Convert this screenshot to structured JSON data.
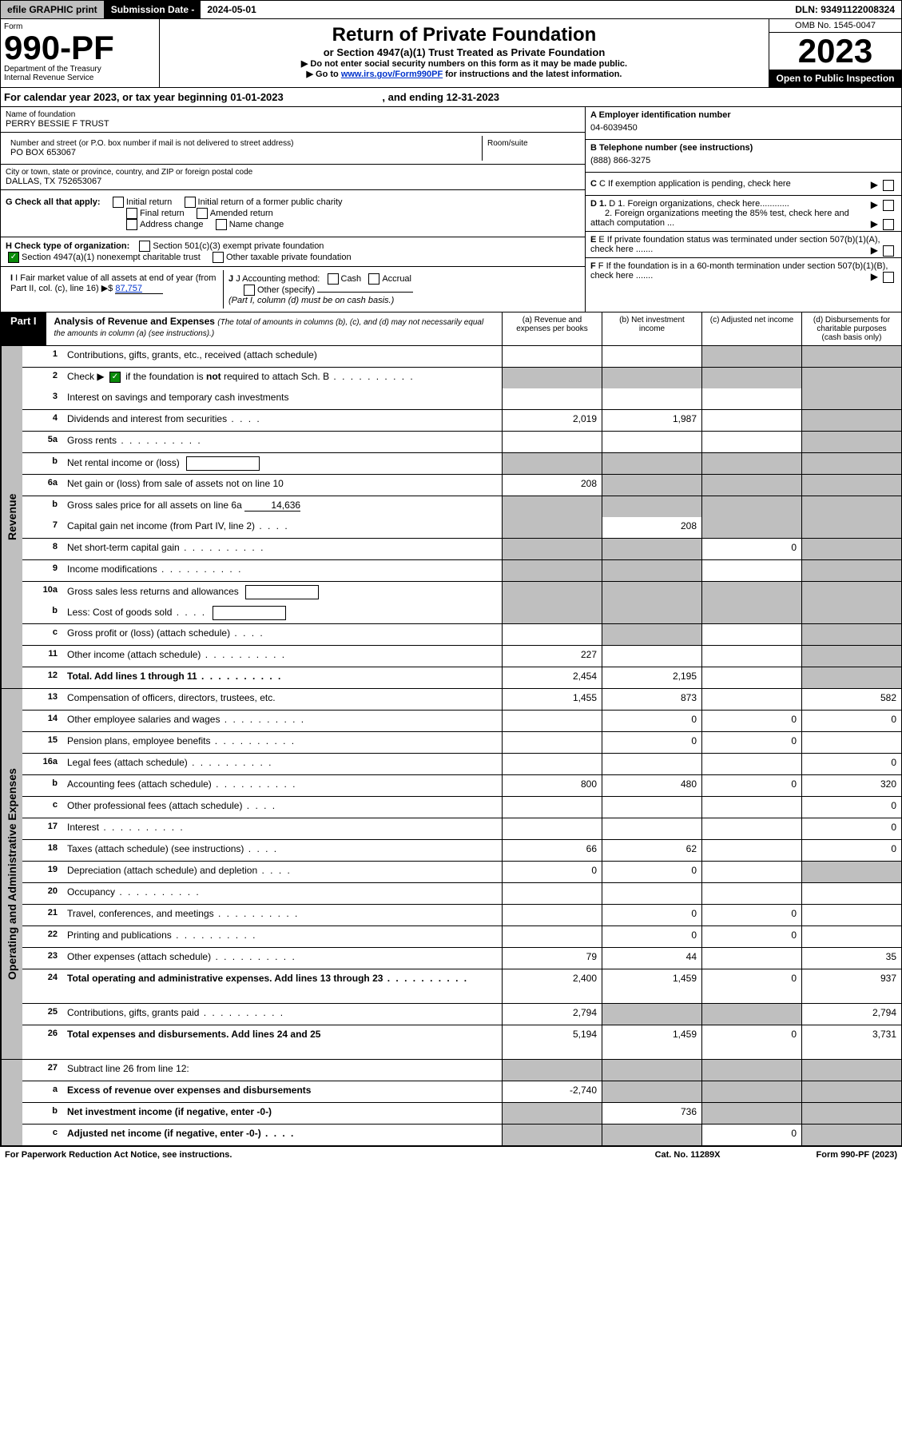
{
  "topbar": {
    "efile": "efile GRAPHIC print",
    "sub_label": "Submission Date - ",
    "sub_date": "2024-05-01",
    "dln_label": "DLN: ",
    "dln": "93491122008324"
  },
  "header": {
    "form": "Form",
    "form_no": "990-PF",
    "dept1": "Department of the Treasury",
    "dept2": "Internal Revenue Service",
    "title": "Return of Private Foundation",
    "sub": "or Section 4947(a)(1) Trust Treated as Private Foundation",
    "note1": "▶ Do not enter social security numbers on this form as it may be made public.",
    "note2_a": "▶ Go to ",
    "note2_link": "www.irs.gov/Form990PF",
    "note2_b": " for instructions and the latest information.",
    "omb": "OMB No. 1545-0047",
    "year": "2023",
    "open": "Open to Public Inspection"
  },
  "cal_year": {
    "a": "For calendar year 2023, or tax year beginning ",
    "b": "01-01-2023",
    "c": ", and ending ",
    "d": "12-31-2023"
  },
  "left": {
    "name_label": "Name of foundation",
    "name": "PERRY BESSIE F TRUST",
    "addr_label": "Number and street (or P.O. box number if mail is not delivered to street address)",
    "room": "Room/suite",
    "addr": "PO BOX 653067",
    "city_label": "City or town, state or province, country, and ZIP or foreign postal code",
    "city": "DALLAS, TX  752653067",
    "g": "G Check all that apply:",
    "g1": "Initial return",
    "g2": "Initial return of a former public charity",
    "g3": "Final return",
    "g4": "Amended return",
    "g5": "Address change",
    "g6": "Name change",
    "h": "H Check type of organization:",
    "h1": "Section 501(c)(3) exempt private foundation",
    "h2": "Section 4947(a)(1) nonexempt charitable trust",
    "h3": "Other taxable private foundation",
    "i": "I Fair market value of all assets at end of year (from Part II, col. (c), line 16) ▶$ ",
    "i_val": "87,757",
    "j": "J Accounting method:",
    "j1": "Cash",
    "j2": "Accrual",
    "j3": "Other (specify)",
    "j4": "(Part I, column (d) must be on cash basis.)"
  },
  "right": {
    "a": "A Employer identification number",
    "a_val": "04-6039450",
    "b": "B Telephone number (see instructions)",
    "b_val": "(888) 866-3275",
    "c": "C If exemption application is pending, check here",
    "arrow": "▶",
    "d1": "D 1. Foreign organizations, check here............",
    "d2": "2. Foreign organizations meeting the 85% test, check here and attach computation ...",
    "e": "E  If private foundation status was terminated under section 507(b)(1)(A), check here .......",
    "f": "F  If the foundation is in a 60-month termination under section 507(b)(1)(B), check here ......."
  },
  "part1": {
    "label": "Part I",
    "title": "Analysis of Revenue and Expenses ",
    "title_note": "(The total of amounts in columns (b), (c), and (d) may not necessarily equal the amounts in column (a) (see instructions).)",
    "ca": "(a)  Revenue and expenses per books",
    "cb": "(b)  Net investment income",
    "cc": "(c)  Adjusted net income",
    "cd": "(d)  Disbursements for charitable purposes (cash basis only)"
  },
  "revenue_label": "Revenue",
  "expense_label": "Operating and Administrative Expenses",
  "rows": [
    {
      "n": "1",
      "l": "Contributions, gifts, grants, etc., received (attach schedule)",
      "a": "",
      "b": "",
      "c": "s",
      "d": "s"
    },
    {
      "n": "2",
      "l": "Check ▶ ☑ if the foundation is not required to attach Sch. B",
      "dots": true,
      "a": "s",
      "b": "s",
      "c": "s",
      "d": "s",
      "nob": true
    },
    {
      "n": "3",
      "l": "Interest on savings and temporary cash investments",
      "a": "",
      "b": "",
      "c": "",
      "d": "s"
    },
    {
      "n": "4",
      "l": "Dividends and interest from securities",
      "dots_s": true,
      "a": "2,019",
      "b": "1,987",
      "c": "",
      "d": "s"
    },
    {
      "n": "5a",
      "l": "Gross rents",
      "dots": true,
      "a": "",
      "b": "",
      "c": "",
      "d": "s"
    },
    {
      "n": "b",
      "l": "Net rental income or (loss)",
      "box": true,
      "a": "s",
      "b": "s",
      "c": "s",
      "d": "s"
    },
    {
      "n": "6a",
      "l": "Net gain or (loss) from sale of assets not on line 10",
      "a": "208",
      "b": "s",
      "c": "s",
      "d": "s"
    },
    {
      "n": "b",
      "l": "Gross sales price for all assets on line 6a",
      "under": "14,636",
      "a": "s",
      "b": "s",
      "c": "s",
      "d": "s",
      "nob": true
    },
    {
      "n": "7",
      "l": "Capital gain net income (from Part IV, line 2)",
      "dots_s": true,
      "a": "s",
      "b": "208",
      "c": "s",
      "d": "s"
    },
    {
      "n": "8",
      "l": "Net short-term capital gain",
      "dots": true,
      "a": "s",
      "b": "s",
      "c": "0",
      "d": "s"
    },
    {
      "n": "9",
      "l": "Income modifications",
      "dots": true,
      "a": "s",
      "b": "s",
      "c": "",
      "d": "s"
    },
    {
      "n": "10a",
      "l": "Gross sales less returns and allowances",
      "box": true,
      "a": "s",
      "b": "s",
      "c": "s",
      "d": "s",
      "nob": true
    },
    {
      "n": "b",
      "l": "Less: Cost of goods sold",
      "dots_s": true,
      "box": true,
      "a": "s",
      "b": "s",
      "c": "s",
      "d": "s"
    },
    {
      "n": "c",
      "l": "Gross profit or (loss) (attach schedule)",
      "dots_s": true,
      "a": "",
      "b": "s",
      "c": "",
      "d": "s"
    },
    {
      "n": "11",
      "l": "Other income (attach schedule)",
      "dots": true,
      "a": "227",
      "b": "",
      "c": "",
      "d": "s"
    },
    {
      "n": "12",
      "l": "Total. Add lines 1 through 11",
      "dots": true,
      "bold": true,
      "a": "2,454",
      "b": "2,195",
      "c": "",
      "d": "s"
    }
  ],
  "exp_rows": [
    {
      "n": "13",
      "l": "Compensation of officers, directors, trustees, etc.",
      "a": "1,455",
      "b": "873",
      "c": "",
      "d": "582"
    },
    {
      "n": "14",
      "l": "Other employee salaries and wages",
      "dots": true,
      "a": "",
      "b": "0",
      "c": "0",
      "d": "0"
    },
    {
      "n": "15",
      "l": "Pension plans, employee benefits",
      "dots": true,
      "a": "",
      "b": "0",
      "c": "0",
      "d": ""
    },
    {
      "n": "16a",
      "l": "Legal fees (attach schedule)",
      "dots": true,
      "a": "",
      "b": "",
      "c": "",
      "d": "0"
    },
    {
      "n": "b",
      "l": "Accounting fees (attach schedule)",
      "dots": true,
      "a": "800",
      "b": "480",
      "c": "0",
      "d": "320"
    },
    {
      "n": "c",
      "l": "Other professional fees (attach schedule)",
      "dots_s": true,
      "a": "",
      "b": "",
      "c": "",
      "d": "0"
    },
    {
      "n": "17",
      "l": "Interest",
      "dots": true,
      "a": "",
      "b": "",
      "c": "",
      "d": "0"
    },
    {
      "n": "18",
      "l": "Taxes (attach schedule) (see instructions)",
      "dots_s": true,
      "a": "66",
      "b": "62",
      "c": "",
      "d": "0"
    },
    {
      "n": "19",
      "l": "Depreciation (attach schedule) and depletion",
      "dots_s": true,
      "a": "0",
      "b": "0",
      "c": "",
      "d": "s"
    },
    {
      "n": "20",
      "l": "Occupancy",
      "dots": true,
      "a": "",
      "b": "",
      "c": "",
      "d": ""
    },
    {
      "n": "21",
      "l": "Travel, conferences, and meetings",
      "dots": true,
      "a": "",
      "b": "0",
      "c": "0",
      "d": ""
    },
    {
      "n": "22",
      "l": "Printing and publications",
      "dots": true,
      "a": "",
      "b": "0",
      "c": "0",
      "d": ""
    },
    {
      "n": "23",
      "l": "Other expenses (attach schedule)",
      "dots": true,
      "a": "79",
      "b": "44",
      "c": "",
      "d": "35"
    },
    {
      "n": "24",
      "l": "Total operating and administrative expenses. Add lines 13 through 23",
      "dots": true,
      "bold": true,
      "a": "2,400",
      "b": "1,459",
      "c": "0",
      "d": "937",
      "tall": true
    },
    {
      "n": "25",
      "l": "Contributions, gifts, grants paid",
      "dots": true,
      "a": "2,794",
      "b": "s",
      "c": "s",
      "d": "2,794"
    },
    {
      "n": "26",
      "l": "Total expenses and disbursements. Add lines 24 and 25",
      "bold": true,
      "a": "5,194",
      "b": "1,459",
      "c": "0",
      "d": "3,731",
      "tall": true
    }
  ],
  "bottom_rows": [
    {
      "n": "27",
      "l": "Subtract line 26 from line 12:",
      "a": "s",
      "b": "s",
      "c": "s",
      "d": "s"
    },
    {
      "n": "a",
      "l": "Excess of revenue over expenses and disbursements",
      "bold": true,
      "a": "-2,740",
      "b": "s",
      "c": "s",
      "d": "s"
    },
    {
      "n": "b",
      "l": "Net investment income (if negative, enter -0-)",
      "bold": true,
      "a": "s",
      "b": "736",
      "c": "s",
      "d": "s"
    },
    {
      "n": "c",
      "l": "Adjusted net income (if negative, enter -0-)",
      "dots_s": true,
      "bold": true,
      "a": "s",
      "b": "s",
      "c": "0",
      "d": "s"
    }
  ],
  "footer": {
    "a": "For Paperwork Reduction Act Notice, see instructions.",
    "b": "Cat. No. 11289X",
    "c": "Form 990-PF (2023)"
  }
}
